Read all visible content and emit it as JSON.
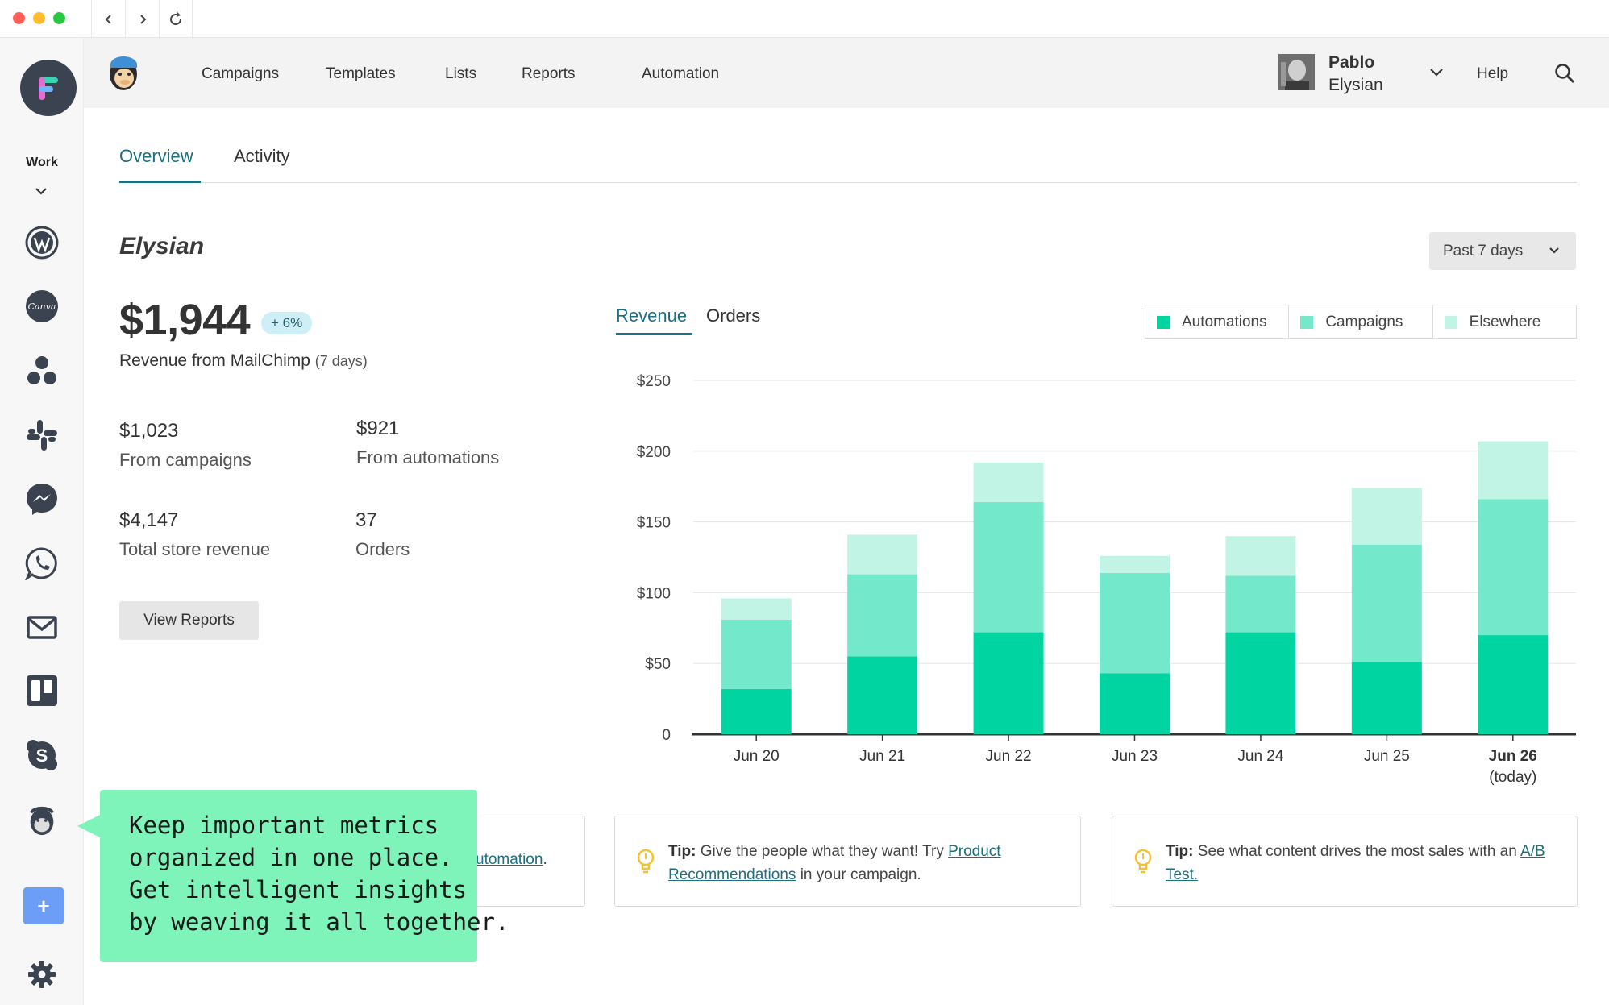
{
  "window": {
    "traffic_colors": [
      "#ff5f57",
      "#febc2e",
      "#28c840"
    ],
    "back_icon": "chevron-left-icon",
    "forward_icon": "chevron-right-icon",
    "reload_icon": "reload-icon"
  },
  "rail": {
    "workspace_label": "Work",
    "apps": [
      "wordpress-icon",
      "canva-icon",
      "circles-icon",
      "slack-icon",
      "messenger-icon",
      "whatsapp-icon",
      "gmail-icon",
      "trello-icon",
      "skype-icon",
      "mailchimp-icon"
    ],
    "canva_label": "Canva",
    "add_label": "+",
    "settings_icon": "gear-icon"
  },
  "topnav": {
    "items": [
      "Campaigns",
      "Templates",
      "Lists",
      "Reports",
      "Automation"
    ],
    "user_first": "Pablo",
    "user_last": "Elysian",
    "help": "Help"
  },
  "tabs": [
    "Overview",
    "Activity"
  ],
  "store": {
    "title": "Elysian",
    "range": "Past 7 days"
  },
  "summary": {
    "revenue": "$1,944",
    "change": "+ 6%",
    "revenue_label": "Revenue from MailChimp",
    "revenue_period": "(7 days)",
    "stats": [
      {
        "value": "$1,023",
        "label": "From campaigns"
      },
      {
        "value": "$921",
        "label": "From automations"
      },
      {
        "value": "$4,147",
        "label": "Total store revenue"
      },
      {
        "value": "37",
        "label": "Orders"
      }
    ],
    "view_reports": "View Reports"
  },
  "chart_tabs": [
    "Revenue",
    "Orders"
  ],
  "colors": {
    "automations": "#00d4a0",
    "campaigns": "#74e8cb",
    "elsewhere": "#c2f4e5",
    "accent": "#1b6f80",
    "callout": "#7ef3ba"
  },
  "chart_data": {
    "type": "bar",
    "stacked": true,
    "categories": [
      "Jun 20",
      "Jun 21",
      "Jun 22",
      "Jun 23",
      "Jun 24",
      "Jun 25",
      "Jun 26"
    ],
    "category_notes": [
      "",
      "",
      "",
      "",
      "",
      "",
      "(today)"
    ],
    "series": [
      {
        "name": "Automations",
        "values": [
          32,
          55,
          72,
          43,
          72,
          51,
          70
        ]
      },
      {
        "name": "Campaigns",
        "values": [
          49,
          58,
          92,
          71,
          40,
          83,
          96
        ]
      },
      {
        "name": "Elsewhere",
        "values": [
          15,
          28,
          28,
          12,
          28,
          40,
          41
        ]
      }
    ],
    "yticks": [
      "0",
      "$50",
      "$100",
      "$150",
      "$200",
      "$250"
    ],
    "ylim": [
      0,
      250
    ],
    "grid": true,
    "legend": "top-right",
    "title": "",
    "xlabel": "",
    "ylabel": ""
  },
  "tips": [
    {
      "prefix": "",
      "text": "",
      "link": "utomation",
      "suffix": "."
    },
    {
      "prefix": "Tip:",
      "text": "Give the people what they want! Try",
      "link": "Product Recommendations",
      "suffix": "in your campaign."
    },
    {
      "prefix": "Tip:",
      "text": "See what content drives the most sales with an",
      "link": "A/B Test.",
      "suffix": ""
    }
  ],
  "callout": {
    "lines": [
      "Keep important metrics",
      "organized in one place.",
      "Get intelligent insights",
      "by weaving it all together."
    ]
  }
}
